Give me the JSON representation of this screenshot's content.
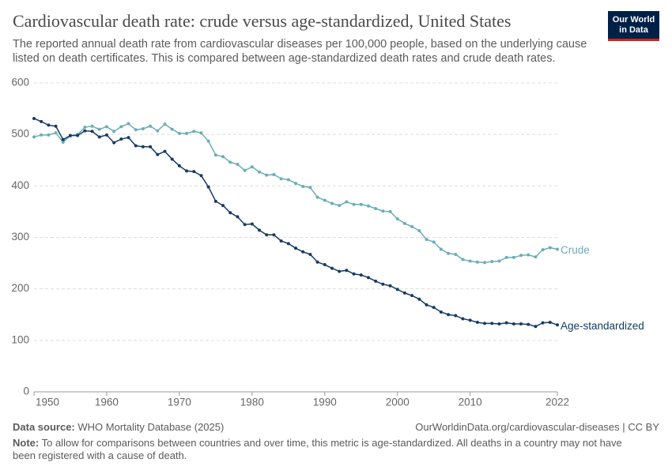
{
  "header": {
    "logo": [
      "Our World",
      "in Data"
    ]
  },
  "chart_data": {
    "type": "line",
    "title": "Cardiovascular death rate: crude versus age-standardized, United States",
    "subtitle": "The reported annual death rate from cardiovascular diseases per 100,000 people, based on the underlying cause listed on death certificates. This is compared between age-standardized death rates and crude death rates.",
    "x": [
      1950,
      1951,
      1952,
      1953,
      1954,
      1955,
      1956,
      1957,
      1958,
      1959,
      1960,
      1961,
      1962,
      1963,
      1964,
      1965,
      1966,
      1967,
      1968,
      1969,
      1970,
      1971,
      1972,
      1973,
      1974,
      1975,
      1976,
      1977,
      1978,
      1979,
      1980,
      1981,
      1982,
      1983,
      1984,
      1985,
      1986,
      1987,
      1988,
      1989,
      1990,
      1991,
      1992,
      1993,
      1994,
      1995,
      1996,
      1997,
      1998,
      1999,
      2000,
      2001,
      2002,
      2003,
      2004,
      2005,
      2006,
      2007,
      2008,
      2009,
      2010,
      2011,
      2012,
      2013,
      2014,
      2015,
      2016,
      2017,
      2018,
      2019,
      2020,
      2021,
      2022
    ],
    "series": [
      {
        "name": "Crude",
        "color": "#6aaeb4",
        "values": [
          495,
          499,
          499,
          503,
          485,
          497,
          500,
          514,
          516,
          510,
          515,
          506,
          515,
          521,
          509,
          511,
          516,
          507,
          520,
          510,
          502,
          502,
          506,
          503,
          487,
          460,
          457,
          446,
          442,
          430,
          437,
          427,
          421,
          422,
          414,
          412,
          405,
          399,
          397,
          378,
          372,
          366,
          362,
          369,
          364,
          364,
          361,
          356,
          351,
          350,
          336,
          327,
          321,
          313,
          296,
          291,
          277,
          269,
          267,
          257,
          254,
          252,
          251,
          253,
          254,
          261,
          261,
          265,
          266,
          262,
          276,
          280,
          277
        ]
      },
      {
        "name": "Age-standardized",
        "color": "#163b64",
        "values": [
          531,
          525,
          518,
          516,
          490,
          498,
          498,
          507,
          506,
          495,
          499,
          484,
          491,
          494,
          478,
          476,
          476,
          461,
          467,
          452,
          439,
          429,
          428,
          420,
          398,
          370,
          362,
          348,
          340,
          325,
          326,
          314,
          305,
          305,
          293,
          288,
          279,
          272,
          267,
          252,
          247,
          240,
          234,
          236,
          229,
          227,
          222,
          215,
          209,
          206,
          199,
          192,
          187,
          180,
          169,
          164,
          155,
          150,
          148,
          142,
          139,
          135,
          133,
          133,
          132,
          134,
          132,
          132,
          131,
          127,
          134,
          135,
          130
        ]
      }
    ],
    "xlim": [
      1950,
      2022
    ],
    "xticks": [
      1950,
      1960,
      1970,
      1980,
      1990,
      2000,
      2010,
      2022
    ],
    "ylim": [
      0,
      600
    ],
    "yticks": [
      0,
      100,
      200,
      300,
      400,
      500,
      600
    ],
    "grid": true
  },
  "footer": {
    "source_label": "Data source:",
    "source": "WHO Mortality Database (2025)",
    "url": "OurWorldinData.org/cardiovascular-diseases | CC BY",
    "note_label": "Note:",
    "note": "To allow for comparisons between countries and over time, this metric is age-standardized. All deaths in a country may not have been registered with a cause of death."
  }
}
